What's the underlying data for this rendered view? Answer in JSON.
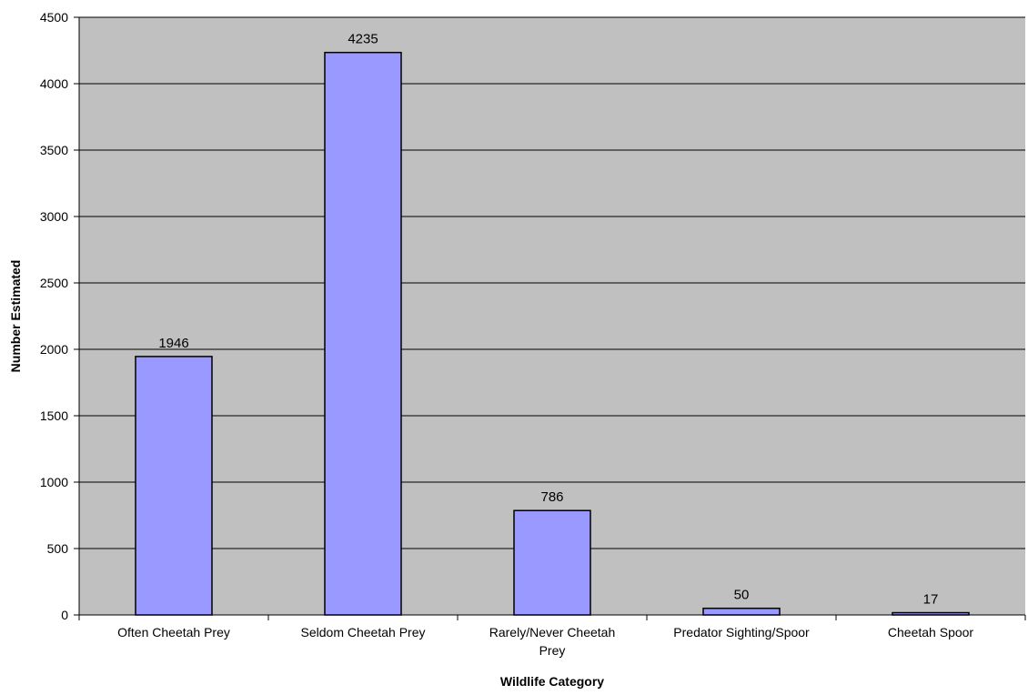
{
  "chart_data": {
    "type": "bar",
    "title": "",
    "xlabel": "Wildlife Category",
    "ylabel": "Number Estimated",
    "categories": [
      [
        "Often Cheetah Prey"
      ],
      [
        "Seldom Cheetah Prey"
      ],
      [
        "Rarely/Never Cheetah",
        "Prey"
      ],
      [
        "Predator Sighting/Spoor"
      ],
      [
        "Cheetah Spoor"
      ]
    ],
    "values": [
      1946,
      4235,
      786,
      50,
      17
    ],
    "ylim": [
      0,
      4500
    ],
    "yticks": [
      0,
      500,
      1000,
      1500,
      2000,
      2500,
      3000,
      3500,
      4000,
      4500
    ],
    "grid": true,
    "legend": "none",
    "colors": {
      "bar": "#9999ff",
      "plot_background": "#c0c0c0",
      "gridline": "#000000",
      "bar_border": "#000000"
    }
  }
}
